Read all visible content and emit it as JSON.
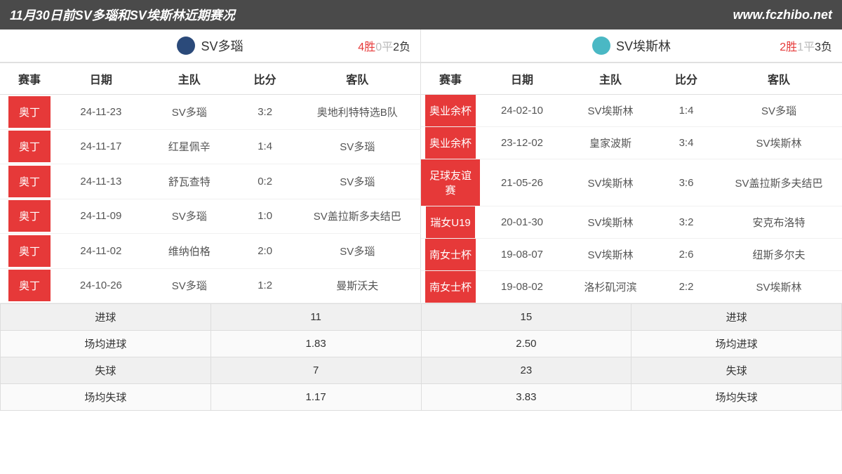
{
  "header": {
    "title": "11月30日前SV多瑙和SV埃斯林近期赛况",
    "site": "www.fczhibo.net"
  },
  "columns": {
    "competition": "赛事",
    "date": "日期",
    "home": "主队",
    "score": "比分",
    "away": "客队"
  },
  "left": {
    "team_name": "SV多瑙",
    "logo_bg": "#2b4a7a",
    "record": {
      "win": "4胜",
      "draw": "0平",
      "loss": "2负"
    },
    "rows": [
      {
        "comp": "奥丁",
        "date": "24-11-23",
        "home": "SV多瑙",
        "score": "3:2",
        "away": "奥地利特特选B队"
      },
      {
        "comp": "奥丁",
        "date": "24-11-17",
        "home": "红星佩辛",
        "score": "1:4",
        "away": "SV多瑙"
      },
      {
        "comp": "奥丁",
        "date": "24-11-13",
        "home": "舒瓦查特",
        "score": "0:2",
        "away": "SV多瑙"
      },
      {
        "comp": "奥丁",
        "date": "24-11-09",
        "home": "SV多瑙",
        "score": "1:0",
        "away": "SV盖拉斯多夫结巴"
      },
      {
        "comp": "奥丁",
        "date": "24-11-02",
        "home": "维纳伯格",
        "score": "2:0",
        "away": "SV多瑙"
      },
      {
        "comp": "奥丁",
        "date": "24-10-26",
        "home": "SV多瑙",
        "score": "1:2",
        "away": "曼斯沃夫"
      }
    ]
  },
  "right": {
    "team_name": "SV埃斯林",
    "logo_bg": "#4ab8c4",
    "record": {
      "win": "2胜",
      "draw": "1平",
      "loss": "3负"
    },
    "rows": [
      {
        "comp": "奥业余杯",
        "date": "24-02-10",
        "home": "SV埃斯林",
        "score": "1:4",
        "away": "SV多瑙"
      },
      {
        "comp": "奥业余杯",
        "date": "23-12-02",
        "home": "皇家波斯",
        "score": "3:4",
        "away": "SV埃斯林"
      },
      {
        "comp": "足球友谊赛",
        "date": "21-05-26",
        "home": "SV埃斯林",
        "score": "3:6",
        "away": "SV盖拉斯多夫结巴"
      },
      {
        "comp": "瑞女U19",
        "date": "20-01-30",
        "home": "SV埃斯林",
        "score": "3:2",
        "away": "安克布洛特"
      },
      {
        "comp": "南女士杯",
        "date": "19-08-07",
        "home": "SV埃斯林",
        "score": "2:6",
        "away": "纽斯多尔夫"
      },
      {
        "comp": "南女士杯",
        "date": "19-08-02",
        "home": "洛杉矶河滨",
        "score": "2:2",
        "away": "SV埃斯林"
      }
    ]
  },
  "summary": {
    "labels": {
      "goals": "进球",
      "avg_goals": "场均进球",
      "conceded": "失球",
      "avg_conceded": "场均失球"
    },
    "left": {
      "goals": "11",
      "avg_goals": "1.83",
      "conceded": "7",
      "avg_conceded": "1.17"
    },
    "right": {
      "goals": "15",
      "avg_goals": "2.50",
      "conceded": "23",
      "avg_conceded": "3.83"
    }
  },
  "colors": {
    "badge_bg": "#e63939",
    "header_bg": "#4a4a4a"
  }
}
